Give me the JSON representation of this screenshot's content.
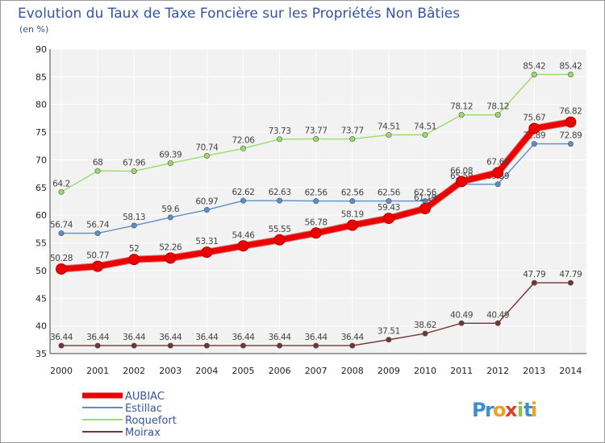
{
  "chart_data": {
    "type": "line",
    "title": "Evolution du Taux de Taxe Foncière sur les Propriétés Non Bâties",
    "subtitle": "(en %)",
    "x": [
      "2000",
      "2001",
      "2002",
      "2003",
      "2004",
      "2005",
      "2006",
      "2007",
      "2008",
      "2009",
      "2010",
      "2011",
      "2012",
      "2013",
      "2014"
    ],
    "ylim": [
      35,
      90
    ],
    "yticks": [
      35,
      40,
      45,
      50,
      55,
      60,
      65,
      70,
      75,
      80,
      85,
      90
    ],
    "grid": true,
    "legend_position": "bottom-left",
    "series": [
      {
        "name": "AUBIAC",
        "color": "#ee0000",
        "values": [
          50.28,
          50.77,
          52,
          52.26,
          53.31,
          54.46,
          55.55,
          56.78,
          58.19,
          59.43,
          61.19,
          66.08,
          67.68,
          75.67,
          76.82
        ],
        "labels": [
          "50.28",
          "50.77",
          "52",
          "52.26",
          "53.31",
          "54.46",
          "55.55",
          "56.78",
          "58.19",
          "59.43",
          "61.19",
          "66.08",
          "67.68",
          "75.67",
          "76.82"
        ]
      },
      {
        "name": "Estillac",
        "color": "#5b8fc7",
        "values": [
          56.74,
          56.74,
          58.13,
          59.6,
          60.97,
          62.62,
          62.63,
          62.56,
          62.56,
          62.56,
          62.56,
          65.59,
          65.59,
          72.89,
          72.89
        ],
        "labels": [
          "56.74",
          "56.74",
          "58.13",
          "59.6",
          "60.97",
          "62.62",
          "62.63",
          "62.56",
          "62.56",
          "62.56",
          "62.56",
          "65.59",
          "65.59",
          "72.89",
          "72.89"
        ]
      },
      {
        "name": "Roquefort",
        "color": "#99dd66",
        "values": [
          64.2,
          68,
          67.96,
          69.39,
          70.74,
          72.06,
          73.73,
          73.77,
          73.77,
          74.51,
          74.51,
          78.12,
          78.12,
          85.42,
          85.42
        ],
        "labels": [
          "64.2",
          "68",
          "67.96",
          "69.39",
          "70.74",
          "72.06",
          "73.73",
          "73.77",
          "73.77",
          "74.51",
          "74.51",
          "78.12",
          "78.12",
          "85.42",
          "85.42"
        ]
      },
      {
        "name": "Moirax",
        "color": "#773333",
        "values": [
          36.44,
          36.44,
          36.44,
          36.44,
          36.44,
          36.44,
          36.44,
          36.44,
          36.44,
          37.51,
          38.62,
          40.49,
          40.49,
          47.79,
          47.79
        ],
        "labels": [
          "36.44",
          "36.44",
          "36.44",
          "36.44",
          "36.44",
          "36.44",
          "36.44",
          "36.44",
          "36.44",
          "37.51",
          "38.62",
          "40.49",
          "40.49",
          "47.79",
          "47.79"
        ]
      }
    ]
  },
  "logo": {
    "text": "Proxiti",
    "letters": [
      "P",
      "r",
      "o",
      "x",
      "i",
      "t",
      "i"
    ],
    "colors": [
      "#3a8fd8",
      "#3a8fd8",
      "#f0a020",
      "#e23b2e",
      "#8cc63f",
      "#3a8fd8",
      "#f0a020"
    ]
  }
}
